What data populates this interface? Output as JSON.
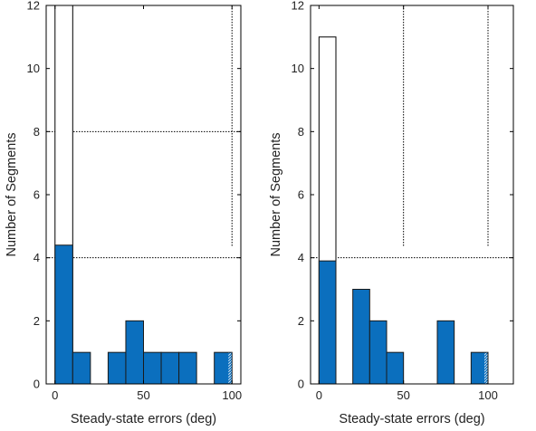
{
  "colors": {
    "bar_fill": "#0b6fbe",
    "bar_edge": "#1a1a1a",
    "outline": "#000000",
    "hatch": "#cfe3f3"
  },
  "chart_data": [
    {
      "type": "bar",
      "xlabel": "Steady-state errors (deg)",
      "ylabel": "Number of Segments",
      "xlim": [
        -5,
        105
      ],
      "ylim": [
        0,
        12
      ],
      "xticks": [
        "0",
        "50",
        "100"
      ],
      "yticks": [
        "0",
        "2",
        "4",
        "6",
        "8",
        "10",
        "12"
      ],
      "bin_width": 10,
      "bars": [
        {
          "x": 5,
          "value": 4.4
        },
        {
          "x": 15,
          "value": 1
        },
        {
          "x": 35,
          "value": 1
        },
        {
          "x": 45,
          "value": 2
        },
        {
          "x": 55,
          "value": 1
        },
        {
          "x": 65,
          "value": 1
        },
        {
          "x": 75,
          "value": 1
        },
        {
          "x": 95,
          "value": 1
        }
      ],
      "outline_bars": [
        {
          "x": 5,
          "value": 12
        }
      ],
      "hlines": [
        8,
        4
      ],
      "vlines": [
        100
      ]
    },
    {
      "type": "bar",
      "xlabel": "Steady-state errors (deg)",
      "ylabel": "Number of Segments",
      "xlim": [
        -5,
        115
      ],
      "ylim": [
        0,
        12
      ],
      "xticks": [
        "0",
        "50",
        "100"
      ],
      "yticks": [
        "0",
        "2",
        "4",
        "6",
        "8",
        "10",
        "12"
      ],
      "bin_width": 10,
      "bars": [
        {
          "x": 5,
          "value": 3.9
        },
        {
          "x": 25,
          "value": 3
        },
        {
          "x": 35,
          "value": 2
        },
        {
          "x": 45,
          "value": 1
        },
        {
          "x": 75,
          "value": 2
        },
        {
          "x": 95,
          "value": 1
        }
      ],
      "outline_bars": [
        {
          "x": 5,
          "value": 11
        }
      ],
      "hlines": [
        4
      ],
      "vlines": [
        50,
        100
      ]
    }
  ]
}
